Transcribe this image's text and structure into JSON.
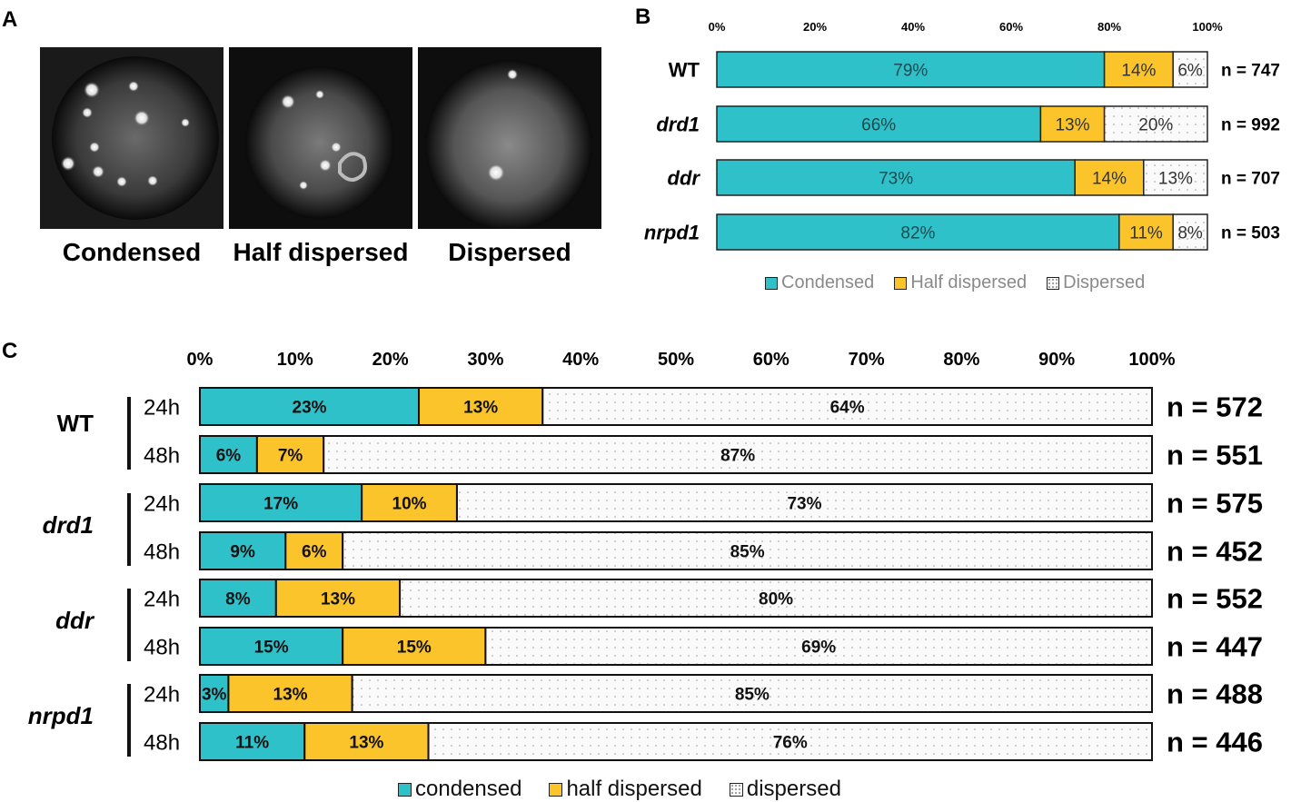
{
  "colors": {
    "condensed": "#2ec1c9",
    "half": "#fbc42b",
    "dispersed": "#fafafa"
  },
  "panelA": {
    "letter": "A",
    "images": [
      {
        "label": "Condensed",
        "icon": "nucleus-condensed-image"
      },
      {
        "label": "Half dispersed",
        "icon": "nucleus-half-dispersed-image"
      },
      {
        "label": "Dispersed",
        "icon": "nucleus-dispersed-image"
      }
    ]
  },
  "panelB": {
    "letter": "B"
  },
  "panelC": {
    "letter": "C"
  },
  "chart_data": [
    {
      "type": "bar",
      "orientation": "horizontal-stacked",
      "panel": "B",
      "axis_ticks": [
        "0%",
        "20%",
        "40%",
        "60%",
        "80%",
        "100%"
      ],
      "xlim": [
        0,
        100
      ],
      "categories": [
        "WT",
        "drd1",
        "ddr",
        "nrpd1"
      ],
      "series": [
        {
          "name": "Condensed",
          "values": [
            79,
            66,
            73,
            82
          ],
          "labels": [
            "79%",
            "66%",
            "73%",
            "82%"
          ]
        },
        {
          "name": "Half dispersed",
          "values": [
            14,
            13,
            14,
            11
          ],
          "labels": [
            "14%",
            "13%",
            "14%",
            "11%"
          ]
        },
        {
          "name": "Dispersed",
          "values": [
            6,
            20,
            13,
            8
          ],
          "labels": [
            "6%",
            "20%",
            "13%",
            "8%"
          ]
        }
      ],
      "n_labels": [
        "n = 747",
        "n = 992",
        "n = 707",
        "n = 503"
      ],
      "legend": [
        "Condensed",
        "Half dispersed",
        "Dispersed"
      ]
    },
    {
      "type": "bar",
      "orientation": "horizontal-stacked",
      "panel": "C",
      "axis_ticks": [
        "0%",
        "10%",
        "20%",
        "30%",
        "40%",
        "50%",
        "60%",
        "70%",
        "80%",
        "90%",
        "100%"
      ],
      "xlim": [
        0,
        100
      ],
      "groups": [
        "WT",
        "drd1",
        "ddr",
        "nrpd1"
      ],
      "timepoints": [
        "24h",
        "48h"
      ],
      "series": [
        {
          "name": "condensed",
          "values": [
            23,
            6,
            17,
            9,
            8,
            15,
            3,
            11
          ],
          "labels": [
            "23%",
            "6%",
            "17%",
            "9%",
            "8%",
            "15%",
            "3%",
            "11%"
          ]
        },
        {
          "name": "half dispersed",
          "values": [
            13,
            7,
            10,
            6,
            13,
            15,
            13,
            13
          ],
          "labels": [
            "13%",
            "7%",
            "10%",
            "6%",
            "13%",
            "15%",
            "13%",
            "13%"
          ]
        },
        {
          "name": "dispersed",
          "values": [
            64,
            87,
            73,
            85,
            80,
            69,
            85,
            76
          ],
          "labels": [
            "64%",
            "87%",
            "73%",
            "85%",
            "80%",
            "69%",
            "85%",
            "76%"
          ]
        }
      ],
      "n_labels": [
        "n = 572",
        "n = 551",
        "n = 575",
        "n = 452",
        "n = 552",
        "n = 447",
        "n = 488",
        "n = 446"
      ],
      "legend": [
        "condensed",
        "half dispersed",
        "dispersed"
      ]
    }
  ]
}
